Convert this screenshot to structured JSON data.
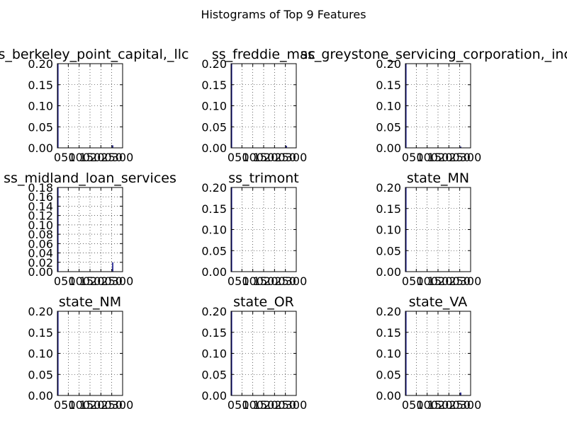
{
  "chart_data": {
    "type": "bar",
    "suptitle": "Histograms of Top 9 Features",
    "grid": true,
    "bar_color": "#000080",
    "subplots": [
      {
        "title": "ss_berkeley_point_capital,_llc",
        "xlim": [
          0,
          300
        ],
        "xticks": [
          0,
          50,
          100,
          150,
          200,
          250,
          300
        ],
        "xtick_labels": [
          "0",
          "50",
          "100",
          "150",
          "200",
          "250",
          "300"
        ],
        "ylim": [
          0,
          0.2
        ],
        "yticks": [
          0,
          0.05,
          0.1,
          0.15,
          0.2
        ],
        "ytick_labels": [
          "0.00",
          "0.05",
          "0.10",
          "0.15",
          "0.20"
        ],
        "bars": [
          {
            "x0": 0,
            "x1": 3,
            "height": 0.2
          },
          {
            "x0": 252,
            "x1": 255,
            "height": 0.006
          }
        ]
      },
      {
        "title": "ss_freddie_mac",
        "xlim": [
          0,
          300
        ],
        "xticks": [
          0,
          50,
          100,
          150,
          200,
          250,
          300
        ],
        "xtick_labels": [
          "0",
          "50",
          "100",
          "150",
          "200",
          "250",
          "300"
        ],
        "ylim": [
          0,
          0.2
        ],
        "yticks": [
          0,
          0.05,
          0.1,
          0.15,
          0.2
        ],
        "ytick_labels": [
          "0.00",
          "0.05",
          "0.10",
          "0.15",
          "0.20"
        ],
        "bars": [
          {
            "x0": 0,
            "x1": 3,
            "height": 0.2
          },
          {
            "x0": 252,
            "x1": 255,
            "height": 0.005
          }
        ]
      },
      {
        "title": "ss_greystone_servicing_corporation,_inc.",
        "xlim": [
          0,
          300
        ],
        "xticks": [
          0,
          50,
          100,
          150,
          200,
          250,
          300
        ],
        "xtick_labels": [
          "0",
          "50",
          "100",
          "150",
          "200",
          "250",
          "300"
        ],
        "ylim": [
          0,
          0.2
        ],
        "yticks": [
          0,
          0.05,
          0.1,
          0.15,
          0.2
        ],
        "ytick_labels": [
          "0.00",
          "0.05",
          "0.10",
          "0.15",
          "0.20"
        ],
        "bars": [
          {
            "x0": 0,
            "x1": 3,
            "height": 0.2
          },
          {
            "x0": 252,
            "x1": 255,
            "height": 0.003
          }
        ]
      },
      {
        "title": "ss_midland_loan_services",
        "xlim": [
          0,
          300
        ],
        "xticks": [
          0,
          50,
          100,
          150,
          200,
          250,
          300
        ],
        "xtick_labels": [
          "0",
          "50",
          "100",
          "150",
          "200",
          "250",
          "300"
        ],
        "ylim": [
          0,
          0.18
        ],
        "yticks": [
          0,
          0.02,
          0.04,
          0.06,
          0.08,
          0.1,
          0.12,
          0.14,
          0.16,
          0.18
        ],
        "ytick_labels": [
          "0.00",
          "0.02",
          "0.04",
          "0.06",
          "0.08",
          "0.10",
          "0.12",
          "0.14",
          "0.16",
          "0.18"
        ],
        "bars": [
          {
            "x0": 0,
            "x1": 3,
            "height": 0.18
          },
          {
            "x0": 252,
            "x1": 255,
            "height": 0.02
          }
        ]
      },
      {
        "title": "ss_trimont",
        "xlim": [
          0,
          300
        ],
        "xticks": [
          0,
          50,
          100,
          150,
          200,
          250,
          300
        ],
        "xtick_labels": [
          "0",
          "50",
          "100",
          "150",
          "200",
          "250",
          "300"
        ],
        "ylim": [
          0,
          0.2
        ],
        "yticks": [
          0,
          0.05,
          0.1,
          0.15,
          0.2
        ],
        "ytick_labels": [
          "0.00",
          "0.05",
          "0.10",
          "0.15",
          "0.20"
        ],
        "bars": [
          {
            "x0": 0,
            "x1": 3,
            "height": 0.2
          }
        ]
      },
      {
        "title": "state_MN",
        "xlim": [
          0,
          300
        ],
        "xticks": [
          0,
          50,
          100,
          150,
          200,
          250,
          300
        ],
        "xtick_labels": [
          "0",
          "50",
          "100",
          "150",
          "200",
          "250",
          "300"
        ],
        "ylim": [
          0,
          0.2
        ],
        "yticks": [
          0,
          0.05,
          0.1,
          0.15,
          0.2
        ],
        "ytick_labels": [
          "0.00",
          "0.05",
          "0.10",
          "0.15",
          "0.20"
        ],
        "bars": [
          {
            "x0": 0,
            "x1": 3,
            "height": 0.2
          }
        ]
      },
      {
        "title": "state_NM",
        "xlim": [
          0,
          300
        ],
        "xticks": [
          0,
          50,
          100,
          150,
          200,
          250,
          300
        ],
        "xtick_labels": [
          "0",
          "50",
          "100",
          "150",
          "200",
          "250",
          "300"
        ],
        "ylim": [
          0,
          0.2
        ],
        "yticks": [
          0,
          0.05,
          0.1,
          0.15,
          0.2
        ],
        "ytick_labels": [
          "0.00",
          "0.05",
          "0.10",
          "0.15",
          "0.20"
        ],
        "bars": [
          {
            "x0": 0,
            "x1": 3,
            "height": 0.2
          }
        ]
      },
      {
        "title": "state_OR",
        "xlim": [
          0,
          300
        ],
        "xticks": [
          0,
          50,
          100,
          150,
          200,
          250,
          300
        ],
        "xtick_labels": [
          "0",
          "50",
          "100",
          "150",
          "200",
          "250",
          "300"
        ],
        "ylim": [
          0,
          0.2
        ],
        "yticks": [
          0,
          0.05,
          0.1,
          0.15,
          0.2
        ],
        "ytick_labels": [
          "0.00",
          "0.05",
          "0.10",
          "0.15",
          "0.20"
        ],
        "bars": [
          {
            "x0": 0,
            "x1": 3,
            "height": 0.2
          }
        ]
      },
      {
        "title": "state_VA",
        "xlim": [
          0,
          300
        ],
        "xticks": [
          0,
          50,
          100,
          150,
          200,
          250,
          300
        ],
        "xtick_labels": [
          "0",
          "50",
          "100",
          "150",
          "200",
          "250",
          "300"
        ],
        "ylim": [
          0,
          0.2
        ],
        "yticks": [
          0,
          0.05,
          0.1,
          0.15,
          0.2
        ],
        "ytick_labels": [
          "0.00",
          "0.05",
          "0.10",
          "0.15",
          "0.20"
        ],
        "bars": [
          {
            "x0": 0,
            "x1": 3,
            "height": 0.2
          },
          {
            "x0": 252,
            "x1": 255,
            "height": 0.007
          }
        ]
      }
    ]
  }
}
